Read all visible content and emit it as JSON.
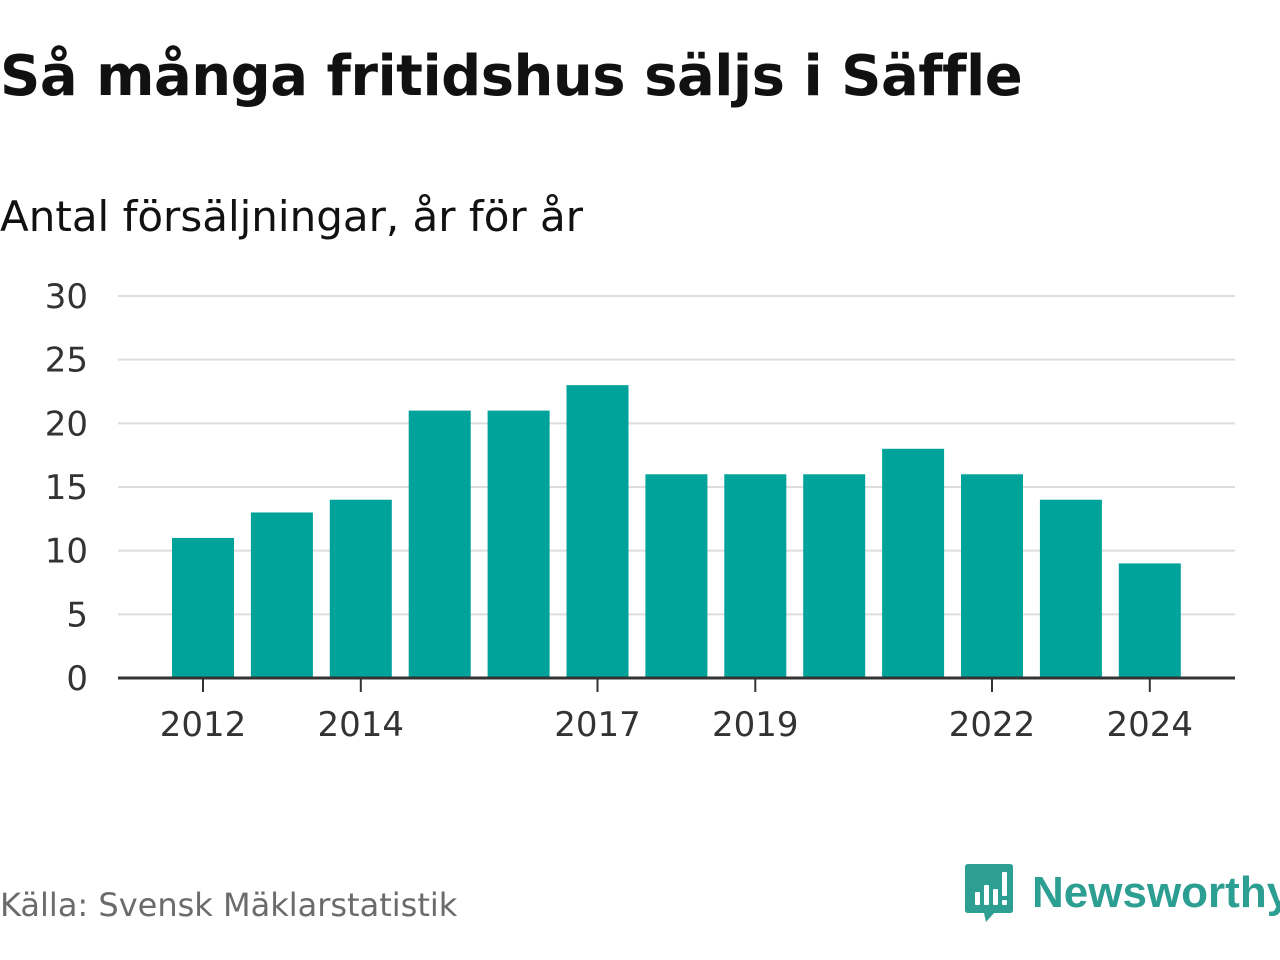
{
  "title": "Så många fritidshus säljs i Säffle",
  "subtitle": "Antal försäljningar, år för år",
  "source": "Källa: Svensk Mäklarstatistik",
  "logo": {
    "text": "Newsworthy",
    "icon": "chart-bubble-icon",
    "color": "#2d9e92"
  },
  "chart_data": {
    "type": "bar",
    "categories": [
      "2012",
      "2013",
      "2014",
      "2015",
      "2016",
      "2017",
      "2018",
      "2019",
      "2020",
      "2021",
      "2022",
      "2023",
      "2024"
    ],
    "values": [
      11,
      13,
      14,
      21,
      21,
      23,
      16,
      16,
      16,
      18,
      16,
      14,
      9
    ],
    "x_tick_labels": [
      "2012",
      "2014",
      "2017",
      "2019",
      "2022",
      "2024"
    ],
    "y_ticks": [
      0,
      5,
      10,
      15,
      20,
      25,
      30
    ],
    "ylim": [
      0,
      30
    ],
    "grid": true,
    "bar_color": "#00a39a"
  }
}
